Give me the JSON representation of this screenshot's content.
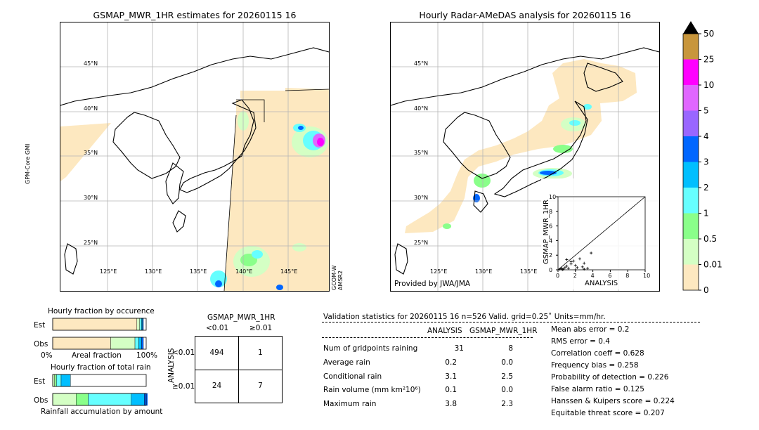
{
  "left_map": {
    "title": "GSMAP_MWR_1HR estimates for 20260115 16",
    "lat_labels": [
      "45°N",
      "40°N",
      "35°N",
      "30°N",
      "25°N"
    ],
    "lon_labels": [
      "125°E",
      "130°E",
      "135°E",
      "140°E",
      "145°E"
    ],
    "left_sensor": "GPM-Core GMI",
    "right_sensor": "GCOM-W AMSR2"
  },
  "right_map": {
    "title": "Hourly Radar-AMeDAS analysis for 20260115 16",
    "lat_labels": [
      "45°N",
      "40°N",
      "35°N",
      "30°N",
      "25°N"
    ],
    "lon_labels": [
      "125°E",
      "130°E",
      "135°E"
    ],
    "credit": "Provided by JWA/JMA"
  },
  "colorbar": {
    "labels": [
      "50",
      "25",
      "10",
      "5",
      "4",
      "3",
      "2",
      "1",
      "0.5",
      "0.01",
      "0"
    ],
    "colors": [
      "#c8963c",
      "#ff00ff",
      "#e066ff",
      "#9966ff",
      "#0066ff",
      "#00bfff",
      "#66ffff",
      "#8aff8a",
      "#d4ffc4",
      "#fde8c0"
    ]
  },
  "chart_data": [
    {
      "type": "scatter",
      "title": "",
      "xlabel": "ANALYSIS",
      "ylabel": "GSMAP_MWR_1HR",
      "xlim": [
        0,
        10
      ],
      "ylim": [
        0,
        10
      ],
      "xticks": [
        "0",
        "2",
        "4",
        "6",
        "8",
        "10"
      ],
      "yticks": [
        "0",
        "2",
        "4",
        "6",
        "8",
        "10"
      ],
      "points": [
        [
          0.2,
          0.1
        ],
        [
          0.4,
          0.2
        ],
        [
          0.6,
          0.1
        ],
        [
          0.8,
          0.3
        ],
        [
          1.0,
          0.5
        ],
        [
          1.2,
          0.2
        ],
        [
          1.5,
          0.8
        ],
        [
          1.8,
          1.2
        ],
        [
          2.0,
          0.6
        ],
        [
          2.2,
          0.3
        ],
        [
          2.5,
          1.5
        ],
        [
          2.8,
          0.4
        ],
        [
          3.0,
          0.9
        ],
        [
          3.4,
          0.2
        ],
        [
          3.8,
          2.3
        ],
        [
          1.0,
          1.4
        ],
        [
          1.5,
          1.1
        ],
        [
          0.5,
          0.0
        ],
        [
          2.0,
          0.0
        ],
        [
          3.0,
          0.1
        ]
      ]
    },
    {
      "type": "bar",
      "title": "Hourly fraction by occurence",
      "categories": [
        "Est",
        "Obs"
      ],
      "xlabel_left": "0%",
      "xlabel_mid": "Areal fraction",
      "xlabel_right": "100%",
      "series": [
        {
          "values": [
            0.9,
            0.62
          ]
        },
        {
          "values": [
            0.03,
            0.26
          ]
        },
        {
          "values": [
            0.02,
            0.04
          ]
        },
        {
          "values": [
            0.01,
            0.03
          ]
        },
        {
          "values": [
            0.01,
            0.02
          ]
        }
      ]
    },
    {
      "type": "bar",
      "title": "Hourly fraction of total rain",
      "categories": [
        "Est",
        "Obs"
      ],
      "xlabel": "Rainfall accumulation by amount",
      "series": [
        {
          "values": [
            0.02,
            0.25
          ]
        },
        {
          "values": [
            0.02,
            0.13
          ]
        },
        {
          "values": [
            0.05,
            0.46
          ]
        },
        {
          "values": [
            0.1,
            0.14
          ]
        },
        {
          "values": [
            0.0,
            0.14
          ]
        }
      ]
    }
  ],
  "contingency": {
    "title": "GSMAP_MWR_1HR",
    "col_headers": [
      "<0.01",
      "≥0.01"
    ],
    "row_axis": "ANALYSIS",
    "row_headers": [
      "<0.01",
      "≥0.01"
    ],
    "cells": [
      [
        "494",
        "1"
      ],
      [
        "24",
        "7"
      ]
    ]
  },
  "validation": {
    "header": "Validation statistics for 20260115 16  n=526 Valid. grid=0.25˚ Units=mm/hr.",
    "col_analysis": "ANALYSIS",
    "col_gsmap": "GSMAP_MWR_1HR",
    "rows": [
      {
        "label": "Num of gridpoints raining",
        "analysis": "31",
        "gsmap": "8"
      },
      {
        "label": "Average rain",
        "analysis": "0.2",
        "gsmap": "0.0"
      },
      {
        "label": "Conditional rain",
        "analysis": "3.1",
        "gsmap": "2.5"
      },
      {
        "label": "Rain volume (mm km²10⁶)",
        "analysis": "0.1",
        "gsmap": "0.0"
      },
      {
        "label": "Maximum rain",
        "analysis": "3.8",
        "gsmap": "2.3"
      }
    ],
    "scores": [
      "Mean abs error =    0.2",
      "RMS error =    0.4",
      "Correlation coeff =  0.628",
      "Frequency bias =  0.258",
      "Probability of detection =  0.226",
      "False alarm ratio =  0.125",
      "Hanssen & Kuipers score =  0.224",
      "Equitable threat score =  0.207"
    ]
  }
}
